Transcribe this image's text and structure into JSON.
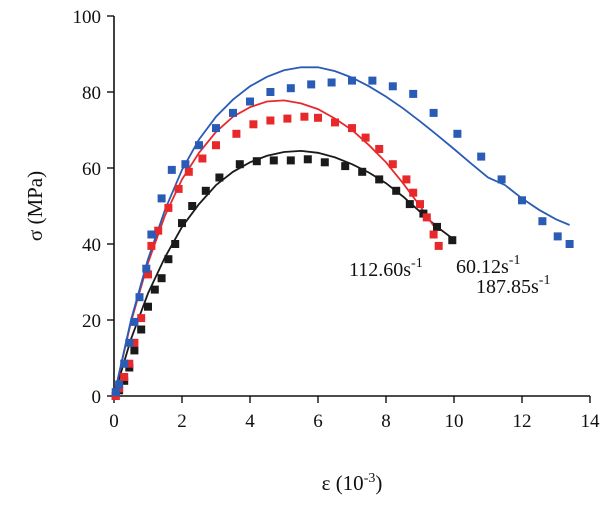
{
  "chart_data": {
    "type": "scatter",
    "title": "",
    "xlabel": "ε (10",
    "xlabel_sup": "-3",
    "xlabel_close": ")",
    "ylabel": "σ (MPa)",
    "xlim": [
      0,
      14
    ],
    "ylim": [
      0,
      100
    ],
    "xticks": [
      "0",
      "2",
      "4",
      "6",
      "8",
      "10",
      "12",
      "14"
    ],
    "yticks": [
      "0",
      "20",
      "40",
      "60",
      "80",
      "100"
    ],
    "grid": false,
    "legend": "inline labels",
    "series": [
      {
        "label": "60.12s",
        "label_sup": "-1",
        "color": "#1a1a1a",
        "marker": "square",
        "points": [
          [
            0.05,
            0
          ],
          [
            0.15,
            1.5
          ],
          [
            0.3,
            4
          ],
          [
            0.45,
            7.5
          ],
          [
            0.6,
            12
          ],
          [
            0.8,
            17.5
          ],
          [
            1.0,
            23.5
          ],
          [
            1.2,
            28
          ],
          [
            1.4,
            31
          ],
          [
            1.6,
            36
          ],
          [
            1.8,
            40
          ],
          [
            2.0,
            45.5
          ],
          [
            2.3,
            50
          ],
          [
            2.7,
            54
          ],
          [
            3.1,
            57.5
          ],
          [
            3.7,
            61
          ],
          [
            4.2,
            61.8
          ],
          [
            4.7,
            62
          ],
          [
            5.2,
            62
          ],
          [
            5.7,
            62.3
          ],
          [
            6.2,
            61.5
          ],
          [
            6.8,
            60.5
          ],
          [
            7.3,
            59
          ],
          [
            7.8,
            57
          ],
          [
            8.3,
            54
          ],
          [
            8.7,
            50.5
          ],
          [
            9.1,
            48
          ],
          [
            9.5,
            44.5
          ],
          [
            9.95,
            41
          ]
        ],
        "fit": [
          [
            0,
            0
          ],
          [
            0.5,
            15
          ],
          [
            1.0,
            27
          ],
          [
            1.5,
            36.5
          ],
          [
            2.0,
            44.5
          ],
          [
            2.5,
            50.5
          ],
          [
            3.0,
            55.5
          ],
          [
            3.5,
            59
          ],
          [
            4.0,
            61.5
          ],
          [
            4.5,
            63.2
          ],
          [
            5.0,
            64.2
          ],
          [
            5.5,
            64.5
          ],
          [
            6.0,
            64
          ],
          [
            6.5,
            62.8
          ],
          [
            7.0,
            61
          ],
          [
            7.5,
            58.8
          ],
          [
            8.0,
            56
          ],
          [
            8.5,
            52.5
          ],
          [
            9.0,
            48.5
          ],
          [
            9.5,
            44.5
          ],
          [
            9.95,
            41.5
          ]
        ]
      },
      {
        "label": "112.60s",
        "label_sup": "-1",
        "color": "#e8292b",
        "marker": "square",
        "points": [
          [
            0.05,
            0
          ],
          [
            0.15,
            2
          ],
          [
            0.3,
            5
          ],
          [
            0.45,
            8.5
          ],
          [
            0.6,
            14
          ],
          [
            0.8,
            20.5
          ],
          [
            1.0,
            32
          ],
          [
            1.1,
            39.5
          ],
          [
            1.3,
            43.5
          ],
          [
            1.6,
            49.5
          ],
          [
            1.9,
            54.5
          ],
          [
            2.2,
            59
          ],
          [
            2.6,
            62.5
          ],
          [
            3.0,
            66
          ],
          [
            3.6,
            69
          ],
          [
            4.1,
            71.5
          ],
          [
            4.6,
            72.5
          ],
          [
            5.1,
            73
          ],
          [
            5.6,
            73.5
          ],
          [
            6.0,
            73.2
          ],
          [
            6.5,
            72
          ],
          [
            7.0,
            70.5
          ],
          [
            7.4,
            68
          ],
          [
            7.8,
            65
          ],
          [
            8.2,
            61
          ],
          [
            8.6,
            57
          ],
          [
            8.8,
            53.5
          ],
          [
            9.0,
            50.5
          ],
          [
            9.2,
            47
          ],
          [
            9.4,
            42.5
          ],
          [
            9.55,
            39.5
          ]
        ],
        "fit": [
          [
            0,
            0
          ],
          [
            0.5,
            19.5
          ],
          [
            1.0,
            35
          ],
          [
            1.5,
            47.5
          ],
          [
            2.0,
            57
          ],
          [
            2.5,
            64
          ],
          [
            3.0,
            69.5
          ],
          [
            3.5,
            73.5
          ],
          [
            4.0,
            76
          ],
          [
            4.5,
            77.5
          ],
          [
            5.0,
            77.8
          ],
          [
            5.5,
            77
          ],
          [
            6.0,
            75.5
          ],
          [
            6.5,
            73
          ],
          [
            7.0,
            70
          ],
          [
            7.5,
            66
          ],
          [
            8.0,
            61.5
          ],
          [
            8.5,
            56
          ],
          [
            9.0,
            50
          ],
          [
            9.5,
            43.5
          ]
        ]
      },
      {
        "label": "187.85s",
        "label_sup": "-1",
        "color": "#2a5bb5",
        "marker": "square",
        "points": [
          [
            0.05,
            1
          ],
          [
            0.15,
            3
          ],
          [
            0.3,
            8.5
          ],
          [
            0.45,
            14
          ],
          [
            0.6,
            19.5
          ],
          [
            0.75,
            26
          ],
          [
            0.95,
            33.5
          ],
          [
            1.1,
            42.5
          ],
          [
            1.4,
            52
          ],
          [
            1.7,
            59.5
          ],
          [
            2.1,
            61
          ],
          [
            2.5,
            66
          ],
          [
            3.0,
            70.5
          ],
          [
            3.5,
            74.5
          ],
          [
            4.0,
            77.5
          ],
          [
            4.6,
            80
          ],
          [
            5.2,
            81
          ],
          [
            5.8,
            82
          ],
          [
            6.4,
            82.5
          ],
          [
            7.0,
            83
          ],
          [
            7.6,
            83
          ],
          [
            8.2,
            81.5
          ],
          [
            8.8,
            79.5
          ],
          [
            9.4,
            74.5
          ],
          [
            10.1,
            69
          ],
          [
            10.8,
            63
          ],
          [
            11.4,
            57
          ],
          [
            12.0,
            51.5
          ],
          [
            12.6,
            46
          ],
          [
            13.05,
            42
          ],
          [
            13.4,
            40
          ]
        ],
        "fit": [
          [
            0,
            0
          ],
          [
            0.5,
            20
          ],
          [
            1.0,
            36
          ],
          [
            1.5,
            49
          ],
          [
            2.0,
            59.5
          ],
          [
            2.5,
            67.5
          ],
          [
            3.0,
            73.5
          ],
          [
            3.5,
            78
          ],
          [
            4.0,
            81.5
          ],
          [
            4.5,
            84
          ],
          [
            5.0,
            85.7
          ],
          [
            5.5,
            86.5
          ],
          [
            6.0,
            86.5
          ],
          [
            6.5,
            85.5
          ],
          [
            7.0,
            83.8
          ],
          [
            7.5,
            81.5
          ],
          [
            8.0,
            78.8
          ],
          [
            8.5,
            75.7
          ],
          [
            9.0,
            72.3
          ],
          [
            9.5,
            68.7
          ],
          [
            10.0,
            65
          ],
          [
            10.5,
            61.2
          ],
          [
            11.0,
            57.5
          ],
          [
            11.5,
            55.5
          ],
          [
            12.0,
            52
          ],
          [
            12.5,
            49
          ],
          [
            13.0,
            46.5
          ],
          [
            13.4,
            45
          ]
        ]
      }
    ]
  }
}
